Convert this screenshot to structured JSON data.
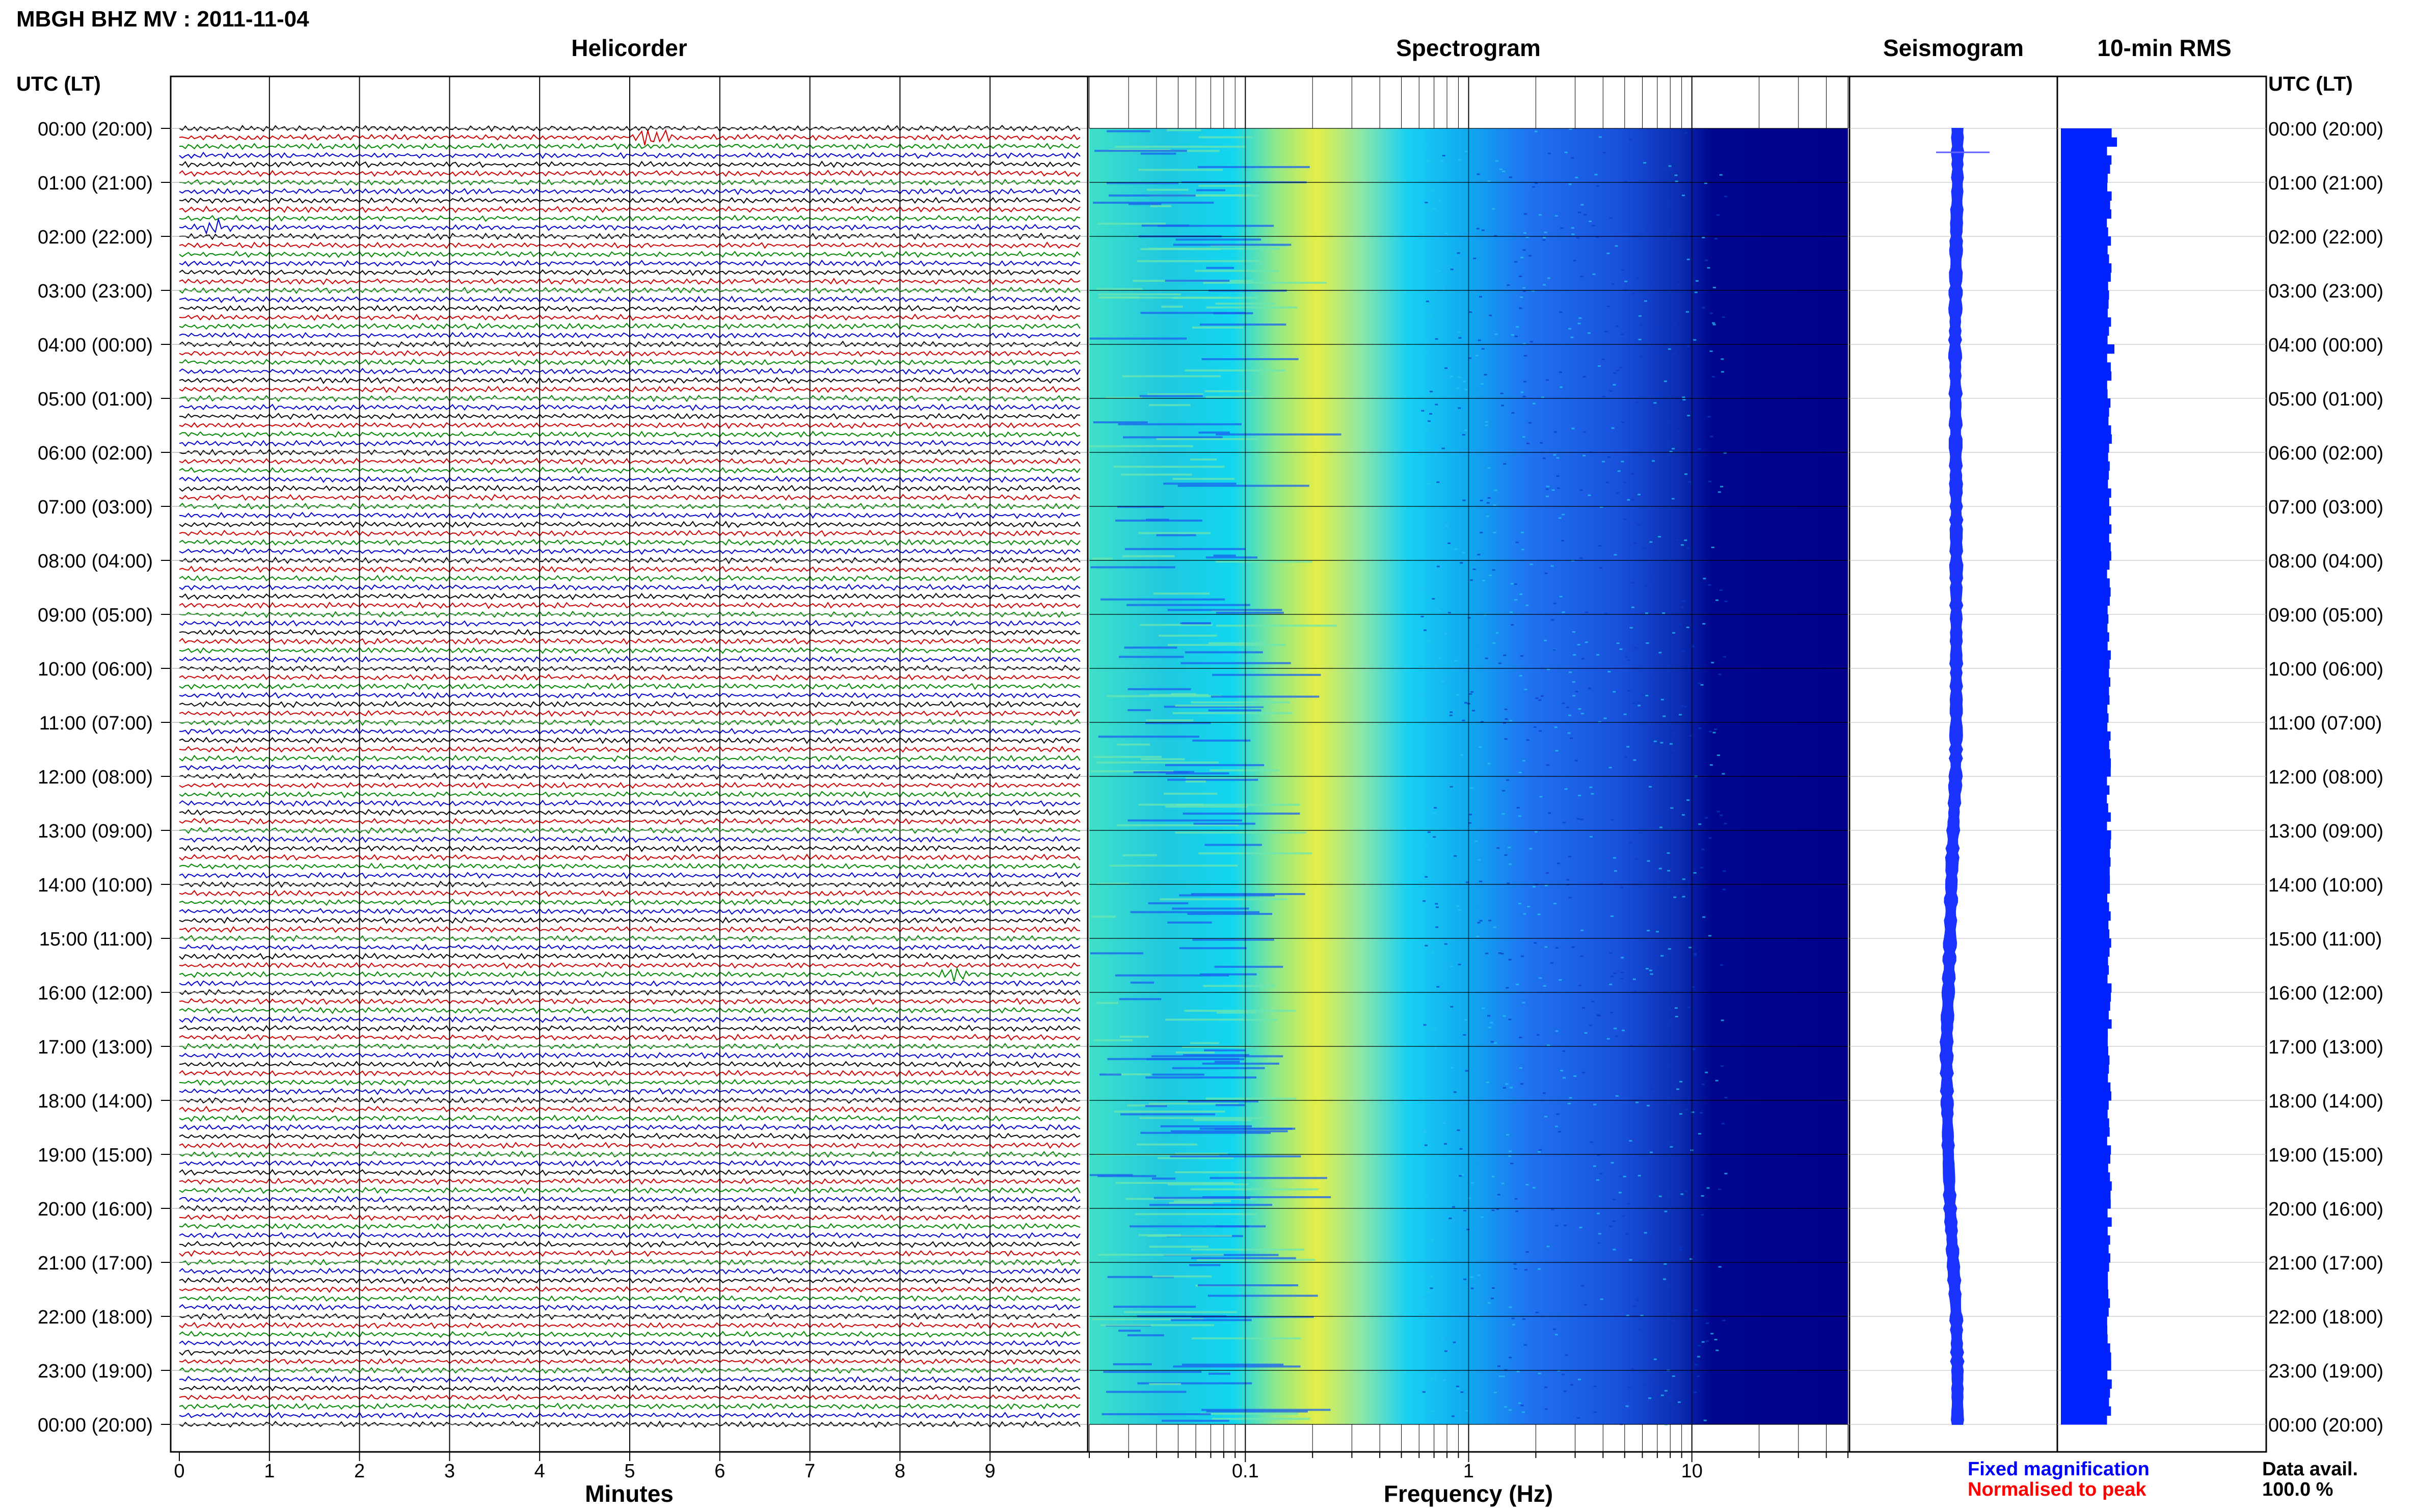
{
  "header": {
    "station_title": "MBGH BHZ MV : 2011-11-04",
    "utc_lt_left": "UTC (LT)",
    "utc_lt_right": "UTC (LT)"
  },
  "panels": {
    "helicorder_title": "Helicorder",
    "spectrogram_title": "Spectrogram",
    "seismogram_title": "Seismogram",
    "rms_title": "10-min RMS"
  },
  "time_labels": [
    "00:00 (20:00)",
    "01:00 (21:00)",
    "02:00 (22:00)",
    "03:00 (23:00)",
    "04:00 (00:00)",
    "05:00 (01:00)",
    "06:00 (02:00)",
    "07:00 (03:00)",
    "08:00 (04:00)",
    "09:00 (05:00)",
    "10:00 (06:00)",
    "11:00 (07:00)",
    "12:00 (08:00)",
    "13:00 (09:00)",
    "14:00 (10:00)",
    "15:00 (11:00)",
    "16:00 (12:00)",
    "17:00 (13:00)",
    "18:00 (14:00)",
    "19:00 (15:00)",
    "20:00 (16:00)",
    "21:00 (17:00)",
    "22:00 (18:00)",
    "23:00 (19:00)",
    "00:00 (20:00)"
  ],
  "legend": {
    "fixed_magnification": "Fixed magnification",
    "normalised_to_peak": "Normalised to peak",
    "fixed_color": "#0000ff",
    "normalised_color": "#ff0000"
  },
  "data_availability": {
    "label": "Data avail.",
    "value": "100.0 %"
  },
  "colors": {
    "trace_cycle": [
      "#000000",
      "#cc0000",
      "#008800",
      "#0000cc"
    ],
    "seismogram": "#1a33ff",
    "rms": "#0022ff",
    "spectrogram_dark": "#00008c",
    "spectrogram_mid": "#1f6fff",
    "spectrogram_cyan": "#00d8f0",
    "spectrogram_yellow": "#f0f040"
  },
  "chart_data": [
    {
      "type": "line",
      "name": "helicorder",
      "title": "Helicorder",
      "xlabel": "Minutes",
      "x_ticks": [
        "0",
        "1",
        "2",
        "3",
        "4",
        "5",
        "6",
        "7",
        "8",
        "9"
      ],
      "xlim": [
        0,
        10
      ],
      "rows_per_hour": 6,
      "row_count": 144,
      "grid": true,
      "events": [
        {
          "time_utc": "00:10",
          "minute": 5.3,
          "relative_amplitude": 5
        },
        {
          "time_utc": "01:50",
          "minute": 0.4,
          "relative_amplitude": 2.5
        },
        {
          "time_utc": "15:40",
          "minute": 8.6,
          "relative_amplitude": 2
        }
      ]
    },
    {
      "type": "heatmap",
      "name": "spectrogram",
      "title": "Spectrogram",
      "xlabel": "Frequency (Hz)",
      "x_scale": "log",
      "x_ticks": [
        "0.1",
        "1",
        "10"
      ],
      "xlim": [
        0.02,
        50
      ],
      "peak_band_hz": [
        0.15,
        0.4
      ],
      "high_frequency_dark_from_hz": 15
    },
    {
      "type": "line",
      "name": "seismogram",
      "title": "Seismogram",
      "points_per_hour": 6,
      "relative_offset_by_hour": [
        0.0,
        0.0,
        -0.02,
        -0.03,
        -0.04,
        -0.03,
        -0.03,
        -0.02,
        -0.02,
        -0.02,
        -0.02,
        -0.02,
        -0.03,
        -0.07,
        -0.1,
        -0.12,
        -0.15,
        -0.18,
        -0.17,
        -0.15,
        -0.12,
        -0.07,
        -0.02,
        0.0,
        0.0
      ]
    },
    {
      "type": "bar",
      "name": "10-min RMS",
      "title": "10-min RMS",
      "orientation": "horizontal",
      "bars": 144,
      "relative_value_range": [
        0.8,
        1.1
      ],
      "spikes": [
        {
          "time_utc": "00:10",
          "relative_value": 1.1
        },
        {
          "time_utc": "04:00",
          "relative_value": 1.05
        }
      ]
    }
  ]
}
